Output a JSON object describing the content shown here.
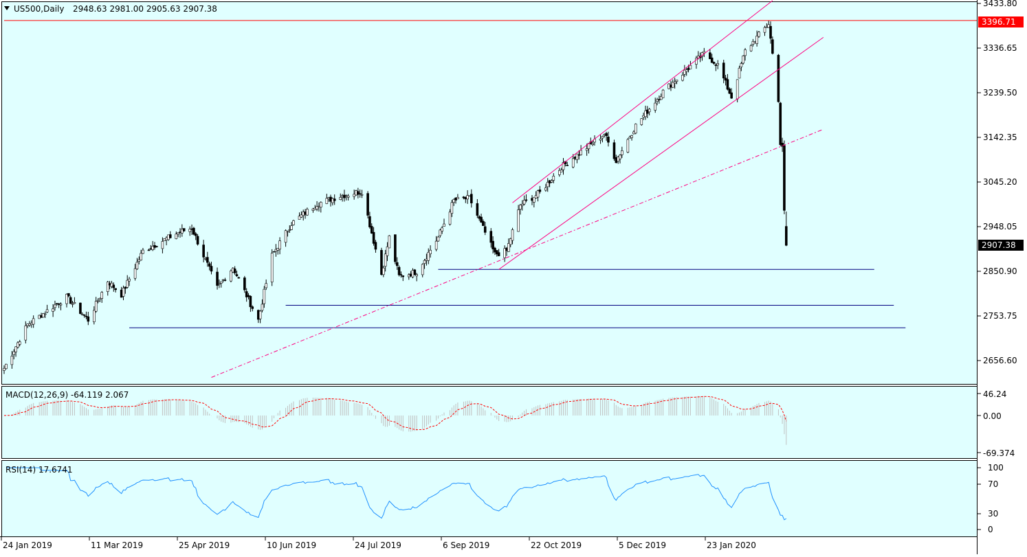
{
  "header": {
    "symbol_title": "US500,Daily",
    "ohlc": "2948.63 2981.00 2905.63 2907.38"
  },
  "colors": {
    "background": "#e0ffff",
    "candle": "#000000",
    "channel": "#ff0080",
    "trendline_dashed": "#ff0080",
    "support_lines": "#000080",
    "resistance_line": "#ff0000",
    "resistance_badge": "#ff0000",
    "price_badge": "#000000",
    "macd_histogram": "#c0c0c0",
    "macd_signal": "#ff0000",
    "rsi_line": "#1e90ff"
  },
  "price_axis": {
    "ticks": [
      "3433.80",
      "3336.65",
      "3239.50",
      "3142.35",
      "3045.20",
      "2948.05",
      "2850.90",
      "2753.75",
      "2656.60"
    ],
    "resistance_label": "3396.71",
    "current_price_label": "2907.38"
  },
  "macd": {
    "title": "MACD(12,26,9) -64.119 2.067",
    "ticks": [
      "46.24",
      "0.00",
      "-69.374"
    ]
  },
  "rsi": {
    "title": "RSI(14) 17.6741",
    "ticks": [
      "100",
      "70",
      "30",
      "0"
    ]
  },
  "time_axis": {
    "labels": [
      "24 Jan 2019",
      "11 Mar 2019",
      "25 Apr 2019",
      "10 Jun 2019",
      "24 Jul 2019",
      "6 Sep 2019",
      "22 Oct 2019",
      "5 Dec 2019",
      "23 Jan 2020"
    ]
  },
  "chart_data": {
    "type": "candlestick",
    "symbol": "US500",
    "timeframe": "Daily",
    "last_ohlc": {
      "open": 2948.63,
      "high": 2981.0,
      "low": 2905.63,
      "close": 2907.38
    },
    "ylim": [
      2620,
      3433.8
    ],
    "anchors_date_close": [
      [
        "2019-01-24",
        2640
      ],
      [
        "2019-02-05",
        2735
      ],
      [
        "2019-02-25",
        2795
      ],
      [
        "2019-03-08",
        2745
      ],
      [
        "2019-03-18",
        2830
      ],
      [
        "2019-03-25",
        2800
      ],
      [
        "2019-04-05",
        2895
      ],
      [
        "2019-04-23",
        2935
      ],
      [
        "2019-04-30",
        2945
      ],
      [
        "2019-05-13",
        2815
      ],
      [
        "2019-05-21",
        2860
      ],
      [
        "2019-06-03",
        2745
      ],
      [
        "2019-06-10",
        2885
      ],
      [
        "2019-06-20",
        2955
      ],
      [
        "2019-07-03",
        2998
      ],
      [
        "2019-07-15",
        3015
      ],
      [
        "2019-07-26",
        3025
      ],
      [
        "2019-08-05",
        2845
      ],
      [
        "2019-08-09",
        2925
      ],
      [
        "2019-08-14",
        2840
      ],
      [
        "2019-08-23",
        2850
      ],
      [
        "2019-09-03",
        2925
      ],
      [
        "2019-09-11",
        3005
      ],
      [
        "2019-09-19",
        3010
      ],
      [
        "2019-10-02",
        2888
      ],
      [
        "2019-10-08",
        2895
      ],
      [
        "2019-10-15",
        2995
      ],
      [
        "2019-10-25",
        3022
      ],
      [
        "2019-11-05",
        3078
      ],
      [
        "2019-11-27",
        3150
      ],
      [
        "2019-12-03",
        3092
      ],
      [
        "2019-12-13",
        3168
      ],
      [
        "2019-12-27",
        3242
      ],
      [
        "2020-01-17",
        3325
      ],
      [
        "2020-01-24",
        3300
      ],
      [
        "2020-01-31",
        3230
      ],
      [
        "2020-02-07",
        3330
      ],
      [
        "2020-02-19",
        3390
      ],
      [
        "2020-02-24",
        3225
      ],
      [
        "2020-02-25",
        3128
      ],
      [
        "2020-02-26",
        3118
      ],
      [
        "2020-02-27",
        2980
      ],
      [
        "2020-02-28",
        2907.38
      ]
    ],
    "horizontal_levels": [
      {
        "price": 3396.71,
        "color": "red",
        "from": "2019-01-24",
        "to": "right-edge"
      },
      {
        "price": 2855,
        "color": "navy",
        "from": "2019-09-03",
        "to": "2020-04-13"
      },
      {
        "price": 2777,
        "color": "navy",
        "from": "2019-06-17",
        "to": "2020-04-23"
      },
      {
        "price": 2728,
        "color": "navy",
        "from": "2019-03-29",
        "to": "2020-04-29"
      }
    ],
    "trend_lines": [
      {
        "kind": "channel-upper",
        "start": [
          "2019-10-11",
          3000
        ],
        "end": [
          "2020-02-21",
          3440
        ]
      },
      {
        "kind": "channel-lower",
        "start": [
          "2019-10-04",
          2855
        ],
        "end": [
          "2020-03-18",
          3360
        ]
      },
      {
        "kind": "dashed-trend",
        "start": [
          "2019-05-10",
          2620
        ],
        "end": [
          "2020-03-18",
          3160
        ]
      }
    ],
    "macd": {
      "fast": 12,
      "slow": 26,
      "signal": 9,
      "macd": -64.119,
      "signal_value": 2.067,
      "ylim": [
        -69.374,
        46.24
      ]
    },
    "rsi": {
      "period": 14,
      "value": 17.6741,
      "levels": [
        30,
        70
      ],
      "ylim": [
        0,
        100
      ]
    }
  }
}
